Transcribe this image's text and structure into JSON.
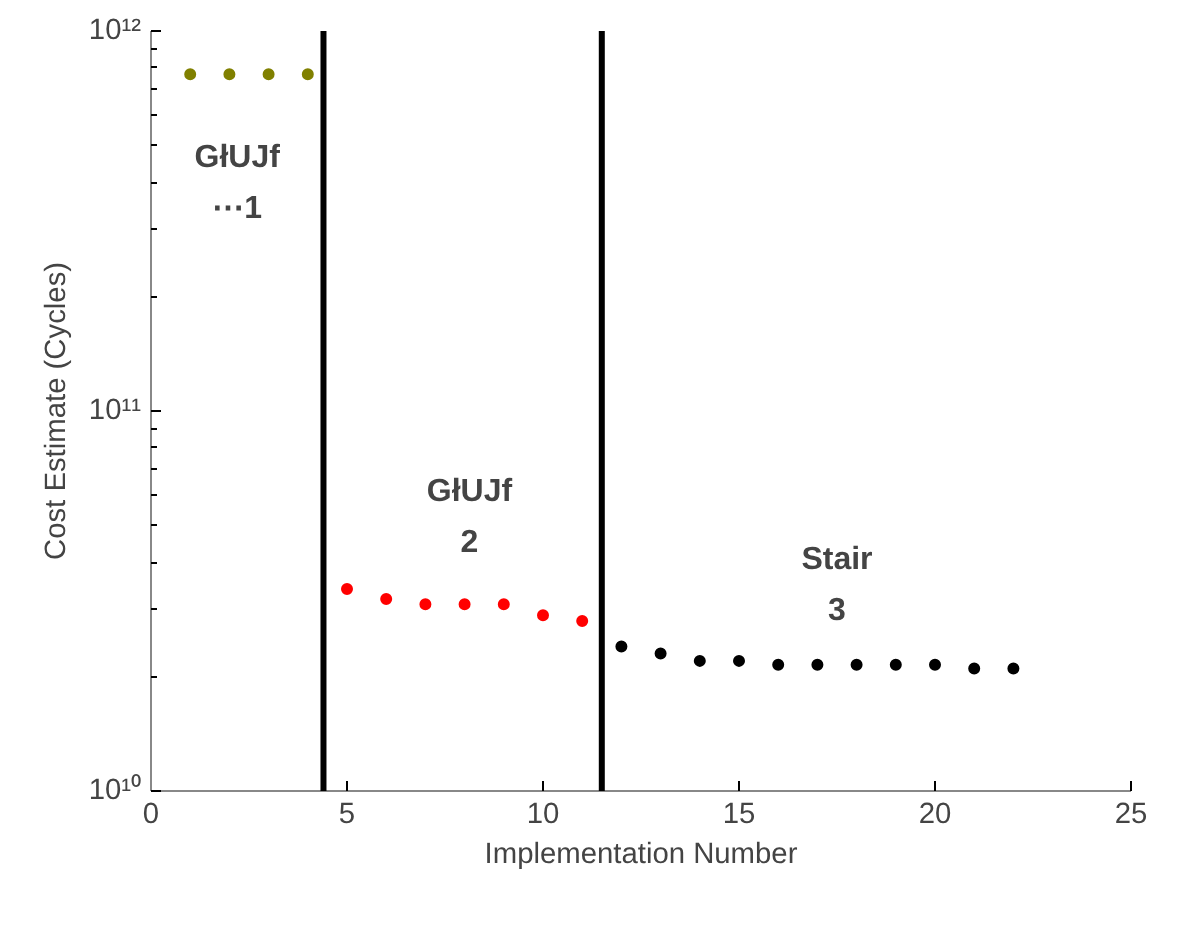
{
  "chart_data": {
    "type": "scatter",
    "xlabel": "Implementation Number",
    "ylabel": "Cost Estimate (Cycles)",
    "log": "y",
    "marker": "circle",
    "grid": false,
    "xlim": [
      0,
      25
    ],
    "xticks": [
      0,
      5,
      10,
      15,
      20,
      25
    ],
    "ylim": [
      10000000000.0,
      1000000000000.0
    ],
    "yticks": [
      {
        "value": 10000000000.0,
        "label": "10¹⁰"
      },
      {
        "value": 100000000000.0,
        "label": "10¹¹"
      },
      {
        "value": 1000000000000.0,
        "label": "10¹²"
      }
    ],
    "series": [
      {
        "color": "#808000",
        "x": [
          1,
          2,
          3,
          4
        ],
        "values": [
          770000000000.0,
          770000000000.0,
          770000000000.0,
          770000000000.0
        ]
      },
      {
        "color": "#ff0000",
        "x": [
          5,
          6,
          7,
          8,
          9,
          10,
          11
        ],
        "values": [
          34000000000.0,
          32000000000.0,
          31000000000.0,
          31000000000.0,
          31000000000.0,
          29000000000.0,
          28000000000.0
        ]
      },
      {
        "color": "#000000",
        "x": [
          12,
          13,
          14,
          15,
          16,
          17,
          18,
          19,
          20,
          21,
          22
        ],
        "values": [
          24000000000.0,
          23000000000.0,
          22000000000.0,
          22000000000.0,
          21500000000.0,
          21500000000.0,
          21500000000.0,
          21500000000.0,
          21500000000.0,
          21000000000.0,
          21000000000.0
        ]
      }
    ],
    "ref_lines": [
      {
        "axis": "x",
        "value": 4.4,
        "color": "#000000"
      },
      {
        "axis": "x",
        "value": 11.5,
        "color": "#000000"
      }
    ],
    "annotations": [
      "GłUJf\n⋯1",
      "GłUJf\n2",
      "Stair\n3"
    ]
  }
}
